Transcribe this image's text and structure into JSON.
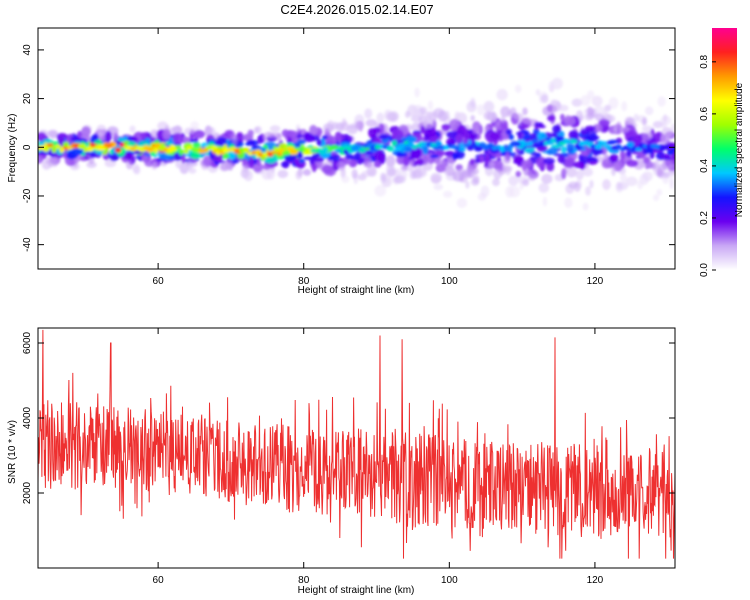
{
  "title": "C2E4.2026.015.02.14.E07",
  "chart_data": [
    {
      "type": "heatmap",
      "xlabel": "Height of straight line (km)",
      "ylabel": "Frequency (Hz)",
      "xlim": [
        43.5,
        131
      ],
      "ylim": [
        -50,
        49
      ],
      "xticks": [
        60,
        80,
        100,
        120
      ],
      "yticks": [
        -40,
        -20,
        0,
        20,
        40
      ],
      "colorbar": {
        "label": "Normalized spectral amplitude",
        "range": [
          0,
          0.93
        ],
        "ticks": [
          0.0,
          0.2,
          0.4,
          0.6,
          0.8
        ],
        "colors": [
          "#ffffff",
          "#c9a8f5",
          "#6a00f0",
          "#1414ff",
          "#00c8ff",
          "#00ff6a",
          "#a0ff00",
          "#ffff00",
          "#ff9a00",
          "#ff2020",
          "#ff0090"
        ]
      },
      "band": [
        {
          "x": 45,
          "center": 0,
          "halfwidth": 4,
          "level": 0.75
        },
        {
          "x": 55,
          "center": 0,
          "halfwidth": 4,
          "level": 0.85
        },
        {
          "x": 65,
          "center": -1,
          "halfwidth": 5,
          "level": 0.7
        },
        {
          "x": 75,
          "center": -2,
          "halfwidth": 5,
          "level": 0.8
        },
        {
          "x": 85,
          "center": -1,
          "halfwidth": 8,
          "level": 0.45
        },
        {
          "x": 95,
          "center": 1,
          "halfwidth": 10,
          "level": 0.4
        },
        {
          "x": 105,
          "center": 0,
          "halfwidth": 12,
          "level": 0.35
        },
        {
          "x": 115,
          "center": 2,
          "halfwidth": 14,
          "level": 0.4
        },
        {
          "x": 125,
          "center": 0,
          "halfwidth": 10,
          "level": 0.35
        },
        {
          "x": 131,
          "center": -1,
          "halfwidth": 9,
          "level": 0.3
        }
      ]
    },
    {
      "type": "line",
      "xlabel": "Height of straight line (km)",
      "ylabel": "SNR (10 * v/v)",
      "xlim": [
        43.5,
        131
      ],
      "ylim": [
        0,
        6400
      ],
      "xticks": [
        60,
        80,
        100,
        120
      ],
      "yticks": [
        2000,
        4000,
        6000
      ],
      "color": "#ee3030",
      "envelope": {
        "x": [
          44,
          50,
          55,
          60,
          65,
          70,
          75,
          80,
          85,
          90,
          95,
          100,
          105,
          110,
          115,
          120,
          125,
          131
        ],
        "mean": [
          3300,
          3200,
          3150,
          3050,
          2950,
          2850,
          2750,
          2650,
          2550,
          2450,
          2350,
          2250,
          2200,
          2150,
          2100,
          2050,
          2000,
          1950
        ],
        "spread": [
          1100,
          1100,
          1050,
          1050,
          1000,
          1000,
          1000,
          1050,
          1100,
          1150,
          1150,
          1150,
          1100,
          1100,
          1150,
          1100,
          1050,
          1050
        ]
      },
      "peaks": [
        {
          "x": 44.2,
          "y": 6350
        },
        {
          "x": 53.5,
          "y": 6000
        },
        {
          "x": 90.5,
          "y": 6200
        },
        {
          "x": 93.5,
          "y": 6100
        },
        {
          "x": 114.5,
          "y": 6150
        }
      ]
    }
  ]
}
